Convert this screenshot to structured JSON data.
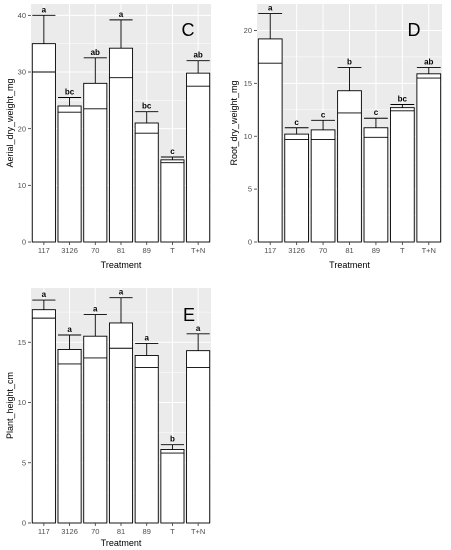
{
  "colors": {
    "panel_background": "#ebebeb",
    "gridline": "#ffffff",
    "bar_fill": "#ffffff",
    "bar_stroke": "#000000",
    "tick_text": "#4d4d4d"
  },
  "chart_data": [
    {
      "type": "bar",
      "panel_label": "C",
      "xlabel": "Treatment",
      "ylabel": "Aerial_dry_weight_mg",
      "categories": [
        "117",
        "3126",
        "70",
        "81",
        "89",
        "T",
        "T+N"
      ],
      "values": [
        35.0,
        24.0,
        28.0,
        34.2,
        21.0,
        14.5,
        29.8
      ],
      "inner_line": [
        30.0,
        22.9,
        23.5,
        29.0,
        19.2,
        14.0,
        27.5
      ],
      "error_upper": [
        40.0,
        25.5,
        32.5,
        39.2,
        23.0,
        15.0,
        32.0
      ],
      "significance": [
        "a",
        "bc",
        "ab",
        "a",
        "bc",
        "c",
        "ab"
      ],
      "ylim": [
        0,
        42
      ],
      "yticks": [
        0,
        10,
        20,
        30,
        40
      ],
      "grid": true
    },
    {
      "type": "bar",
      "panel_label": "D",
      "xlabel": "Treatment",
      "ylabel": "Root_dry_weight_mg",
      "categories": [
        "117",
        "3126",
        "70",
        "81",
        "89",
        "T",
        "T+N"
      ],
      "values": [
        19.2,
        10.2,
        10.6,
        14.3,
        10.8,
        12.7,
        15.9
      ],
      "inner_line": [
        16.9,
        9.7,
        9.7,
        12.2,
        9.9,
        12.4,
        15.5
      ],
      "error_upper": [
        21.6,
        10.8,
        11.5,
        16.5,
        11.7,
        13.0,
        16.5
      ],
      "significance": [
        "a",
        "c",
        "c",
        "b",
        "c",
        "bc",
        "ab"
      ],
      "ylim": [
        0,
        22.5
      ],
      "yticks": [
        0,
        5,
        10,
        15,
        20
      ],
      "grid": true
    },
    {
      "type": "bar",
      "panel_label": "E",
      "xlabel": "Treatment",
      "ylabel": "Plant_height_cm",
      "categories": [
        "117",
        "3126",
        "70",
        "81",
        "89",
        "T",
        "T+N"
      ],
      "values": [
        17.7,
        14.4,
        15.5,
        16.6,
        13.9,
        6.1,
        14.3
      ],
      "inner_line": [
        17.0,
        13.2,
        13.7,
        14.5,
        12.9,
        5.8,
        12.9
      ],
      "error_upper": [
        18.5,
        15.6,
        17.3,
        18.7,
        14.9,
        6.5,
        15.7
      ],
      "significance": [
        "a",
        "a",
        "a",
        "a",
        "a",
        "b",
        "a"
      ],
      "ylim": [
        0,
        19.5
      ],
      "yticks": [
        0,
        5,
        10,
        15
      ],
      "grid": true
    }
  ]
}
